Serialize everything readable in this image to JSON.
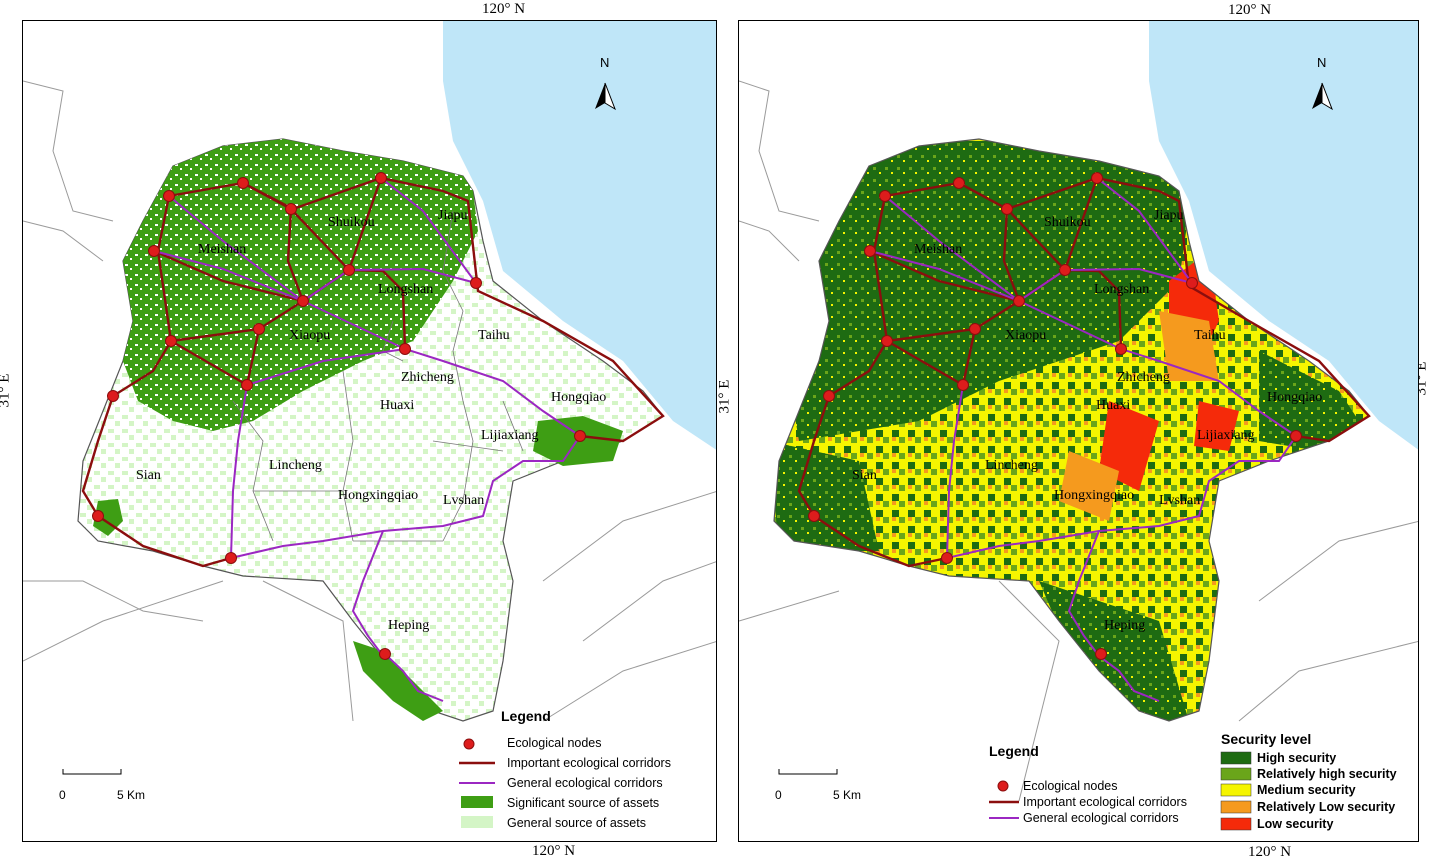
{
  "coordinates": {
    "lon_label": "120° N",
    "lat_label": "31° E"
  },
  "north_label": "N",
  "scale": {
    "start": "0",
    "end": "5 Km"
  },
  "place_names": [
    "Jiapu",
    "Shuikou",
    "Meishan",
    "Longshan",
    "Taihu",
    "Xiaopu",
    "Zhicheng",
    "Huaxi",
    "Hongqiao",
    "Lijiaxiang",
    "Sian",
    "Lincheng",
    "Hongxingqiao",
    "Lvshan",
    "Heping"
  ],
  "left_map": {
    "legend_title": "Legend",
    "items": [
      {
        "label": "Ecological nodes",
        "symbol": "red-dot"
      },
      {
        "label": "Important ecological corridors",
        "symbol": "dark-red-line"
      },
      {
        "label": "General ecological corridors",
        "symbol": "purple-line"
      },
      {
        "label": "Significant source of assets",
        "symbol": "green-box"
      },
      {
        "label": "General source of assets",
        "symbol": "light-green-box"
      }
    ]
  },
  "right_map": {
    "legend_title": "Legend",
    "items": [
      {
        "label": "Ecological nodes",
        "symbol": "red-dot"
      },
      {
        "label": "Important ecological corridors",
        "symbol": "dark-red-line"
      },
      {
        "label": "General ecological corridors",
        "symbol": "purple-line"
      }
    ],
    "security_title": "Security level",
    "security_levels": [
      {
        "label": "High security",
        "color": "#1e6b12"
      },
      {
        "label": "Relatively high security",
        "color": "#6aa51a"
      },
      {
        "label": "Medium security",
        "color": "#f5f500"
      },
      {
        "label": "Relatively Low security",
        "color": "#f59a1e"
      },
      {
        "label": "Low security",
        "color": "#f52a0a"
      }
    ]
  },
  "colors": {
    "water": "#bfe6f8",
    "node": "#dd1c1c",
    "important_corridor": "#8b0e0e",
    "general_corridor": "#9b27c2",
    "significant_source": "#3e9e14",
    "general_source": "#d4f5c6"
  }
}
